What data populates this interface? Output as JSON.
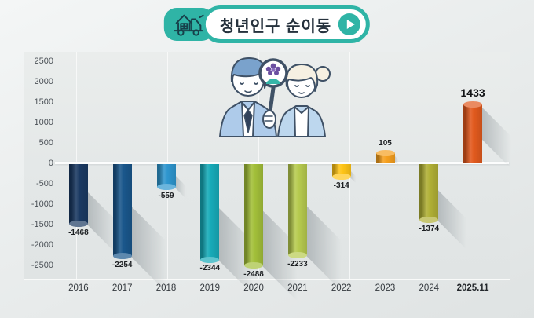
{
  "banner": {
    "title": "청년인구 순이동",
    "truck_icon": "moving-truck-icon",
    "play_icon": "play-icon"
  },
  "illustration": "two-people-with-magnifying-glass",
  "chart_data": {
    "type": "bar",
    "title": "청년인구 순이동",
    "categories": [
      "2016",
      "2017",
      "2018",
      "2019",
      "2020",
      "2021",
      "2022",
      "2023",
      "2024",
      "2025.11"
    ],
    "values": [
      -1468,
      -2254,
      -559,
      -2344,
      -2488,
      -2233,
      -314,
      105,
      -1374,
      1433
    ],
    "bar_colors": [
      "#1b3a63",
      "#1a578c",
      "#2e96cf",
      "#17abb9",
      "#a3c03a",
      "#b7cb4f",
      "#ffc517",
      "#f6a01f",
      "#b1b036",
      "#e25a1e"
    ],
    "data_labels": [
      "-1468",
      "-2254",
      "-559",
      "-2344",
      "-2488",
      "-2233",
      "-314",
      "105",
      "-1374",
      "1433"
    ],
    "xlabel": "",
    "ylabel": "",
    "ylim": [
      -2500,
      2500
    ],
    "yticks": [
      2500,
      2000,
      1500,
      1000,
      500,
      0,
      -500,
      -1000,
      -1500,
      -2000,
      -2500
    ],
    "grid": "faint-vertical",
    "legend": null,
    "accent_color": "#2fb4a6",
    "zero_line_color": "#fcfdfd"
  }
}
